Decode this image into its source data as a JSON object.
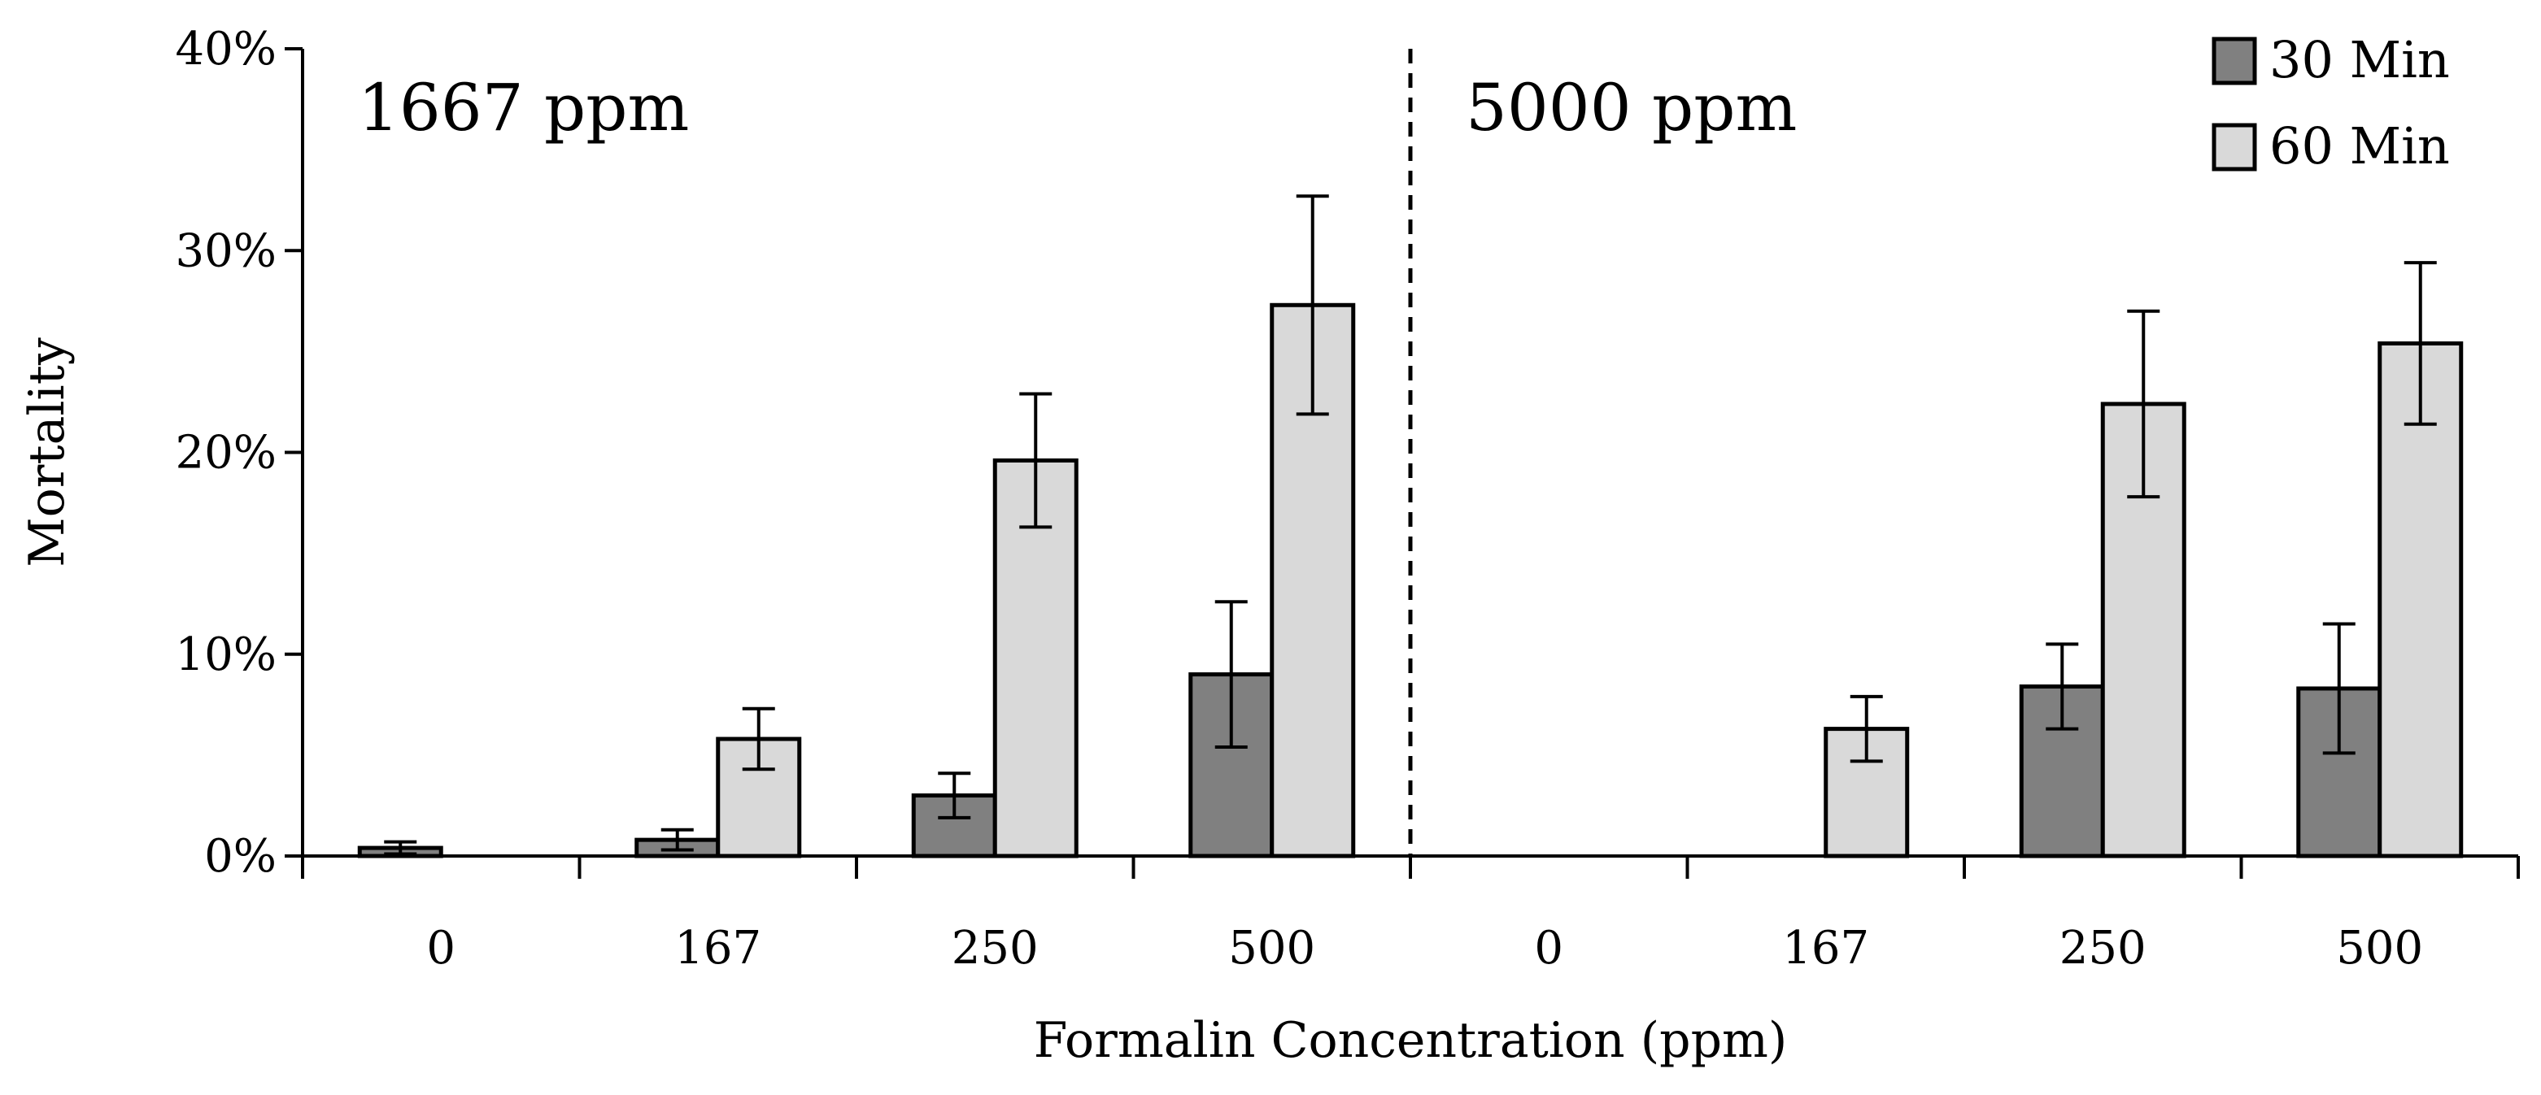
{
  "chart_data": {
    "type": "bar",
    "title": "",
    "xlabel": "Formalin Concentration (ppm)",
    "ylabel": "Mortality",
    "ylim": [
      0,
      40
    ],
    "yticks": [
      "0%",
      "10%",
      "20%",
      "30%",
      "40%"
    ],
    "ytick_values": [
      0,
      10,
      20,
      30,
      40
    ],
    "grid": false,
    "legend_position": "top-right",
    "groups": [
      {
        "label": "1667 ppm",
        "categories": [
          "0",
          "167",
          "250",
          "500"
        ]
      },
      {
        "label": "5000 ppm",
        "categories": [
          "0",
          "167",
          "250",
          "500"
        ]
      }
    ],
    "series": [
      {
        "name": "30 Min",
        "color": "#808080",
        "values": [
          0.4,
          0.8,
          3.0,
          9.0,
          0.0,
          0.0,
          8.4,
          8.3
        ],
        "errors": [
          0.3,
          0.5,
          1.1,
          3.6,
          0.0,
          0.0,
          2.1,
          3.2
        ]
      },
      {
        "name": "60 Min",
        "color": "#d9d9d9",
        "values": [
          0.0,
          5.8,
          19.6,
          27.3,
          0.0,
          6.3,
          22.4,
          25.4
        ],
        "errors": [
          0.0,
          1.5,
          3.3,
          5.4,
          0.0,
          1.6,
          4.6,
          4.0
        ]
      }
    ]
  }
}
